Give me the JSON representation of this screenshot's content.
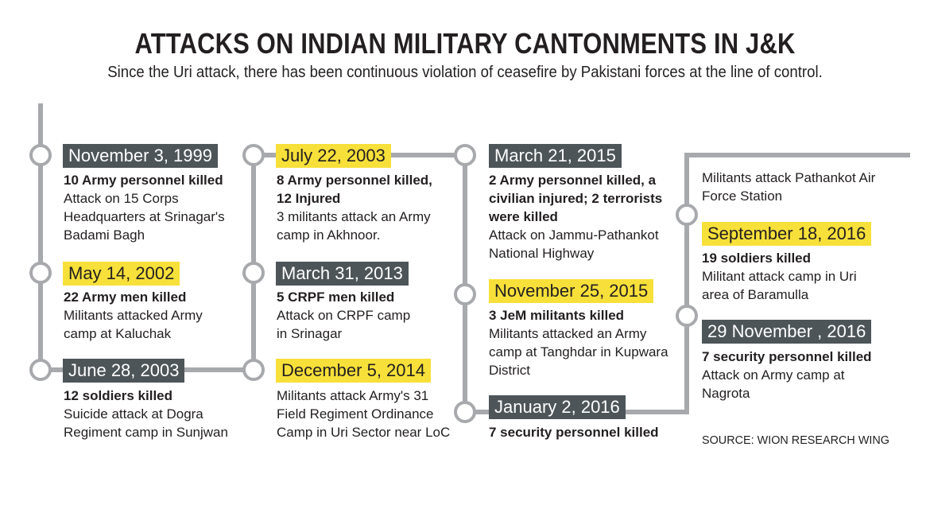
{
  "title": "ATTACKS ON INDIAN MILITARY CANTONMENTS IN J&K",
  "subtitle": "Since the Uri attack, there has been continuous violation of ceasefire by Pakistani forces at the line of control.",
  "source": "SOURCE: WION RESEARCH WING",
  "colors": {
    "date_dark": "#4d5559",
    "date_highlight": "#f7e03a",
    "line": "#a7a9ac"
  },
  "events": [
    {
      "date": "November 3, 1999",
      "highlight": false,
      "casualties": [
        "10 Army personnel killed"
      ],
      "description": [
        "Attack on 15 Corps",
        "Headquarters at Srinagar's",
        "Badami Bagh"
      ]
    },
    {
      "date": "May 14, 2002",
      "highlight": true,
      "casualties": [
        "22 Army men killed"
      ],
      "description": [
        "Militants attacked Army",
        "camp at Kaluchak"
      ]
    },
    {
      "date": "June 28, 2003",
      "highlight": false,
      "casualties": [
        "12 soldiers killed"
      ],
      "description": [
        "Suicide attack at Dogra",
        "Regiment camp in Sunjwan"
      ]
    },
    {
      "date": "July 22, 2003",
      "highlight": true,
      "casualties": [
        "8 Army personnel killed,",
        "12 Injured"
      ],
      "description": [
        "3 militants attack an Army",
        "camp in Akhnoor."
      ]
    },
    {
      "date": "March 31, 2013",
      "highlight": false,
      "casualties": [
        "5 CRPF men killed"
      ],
      "description": [
        "Attack on CRPF camp",
        "in Srinagar"
      ]
    },
    {
      "date": "December 5, 2014",
      "highlight": true,
      "casualties": [],
      "description": [
        "Militants attack Army's 31",
        "Field Regiment Ordinance",
        "Camp in Uri Sector near LoC"
      ]
    },
    {
      "date": "March 21, 2015",
      "highlight": false,
      "casualties": [
        "2 Army personnel killed,  a",
        "civilian injured; 2 terrorists",
        "were killed"
      ],
      "description": [
        "Attack on Jammu-Pathankot",
        "National Highway"
      ]
    },
    {
      "date": "November 25, 2015",
      "highlight": true,
      "casualties": [
        "3 JeM militants killed"
      ],
      "description": [
        "Militants attacked an Army",
        "camp at Tanghdar in Kupwara",
        "District"
      ]
    },
    {
      "date": "January 2, 2016",
      "highlight": false,
      "casualties": [
        "7 security personnel killed"
      ],
      "description": [
        "Militants  attack Pathankot Air",
        "Force Station"
      ]
    },
    {
      "date": "September 18, 2016",
      "highlight": true,
      "casualties": [
        "19 soldiers killed"
      ],
      "description": [
        "Militant attack camp in Uri",
        "area of Baramulla"
      ]
    },
    {
      "date": "29 November , 2016",
      "highlight": false,
      "casualties": [
        "7 security personnel killed"
      ],
      "description": [
        "Attack on Army camp at",
        "Nagrota"
      ]
    }
  ]
}
